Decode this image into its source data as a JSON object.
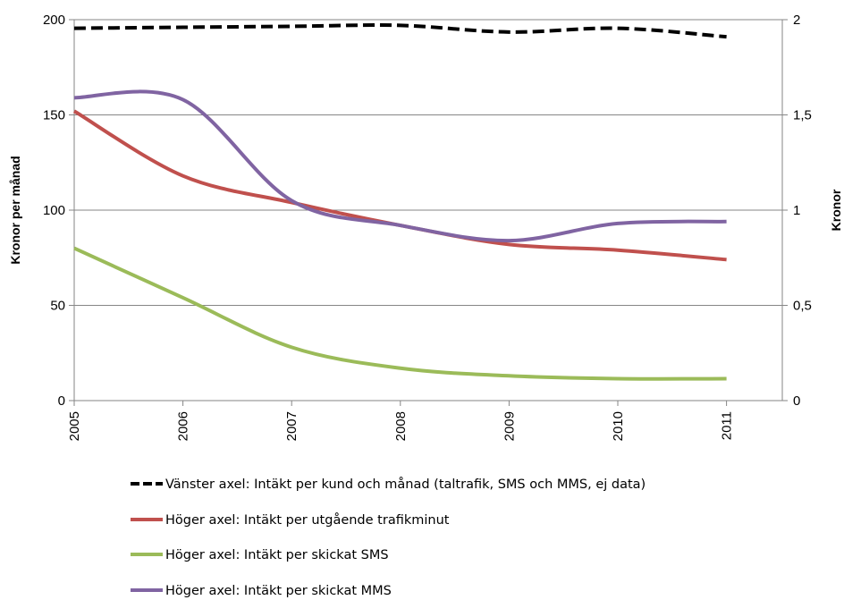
{
  "chart_data": {
    "type": "line",
    "x": [
      "2005",
      "2006",
      "2007",
      "2008",
      "2009",
      "2010",
      "2011"
    ],
    "y_left": {
      "label": "Kronor per månad",
      "ticks": [
        "0",
        "50",
        "100",
        "150",
        "200"
      ],
      "range": [
        0,
        200
      ]
    },
    "y_right": {
      "label": "Kronor",
      "ticks": [
        "0",
        "0,5",
        "1",
        "1,5",
        "2"
      ],
      "range": [
        0,
        2
      ]
    },
    "grid": true,
    "legend_position": "bottom",
    "series": [
      {
        "name": "Vänster axel: Intäkt per kund och månad (taltrafik, SMS och MMS, ej data)",
        "axis": "left",
        "color": "#000000",
        "dashed": true,
        "values": [
          195.5,
          196,
          196.5,
          197,
          193.5,
          195.5,
          191
        ]
      },
      {
        "name": "Höger axel: Intäkt per utgående trafikminut",
        "axis": "right",
        "color": "#c0504d",
        "dashed": false,
        "values": [
          1.52,
          1.18,
          1.04,
          0.92,
          0.82,
          0.79,
          0.74
        ]
      },
      {
        "name": "Höger axel: Intäkt per skickat SMS",
        "axis": "right",
        "color": "#9bbb59",
        "dashed": false,
        "values": [
          0.8,
          0.54,
          0.28,
          0.17,
          0.13,
          0.115,
          0.115
        ]
      },
      {
        "name": "Höger axel: Intäkt per skickat MMS",
        "axis": "right",
        "color": "#8064a2",
        "dashed": false,
        "values": [
          1.59,
          1.58,
          1.05,
          0.92,
          0.84,
          0.93,
          0.94
        ]
      }
    ]
  }
}
